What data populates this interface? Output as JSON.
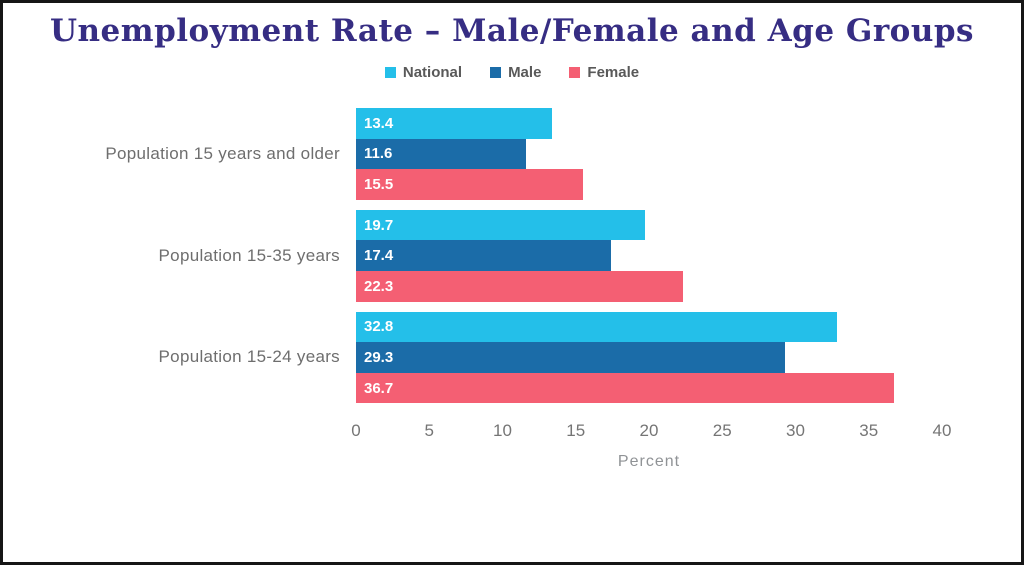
{
  "title": "Unemployment Rate – Male/Female and Age Groups",
  "colors": {
    "title": "#362D83",
    "national": "#24BFE9",
    "male": "#1B6CA8",
    "female": "#F45F73",
    "axis_text": "#757575",
    "category_text": "#6E6E6E",
    "value_label": "#FFFFFF"
  },
  "chart_data": {
    "type": "bar",
    "orientation": "horizontal",
    "title": "Unemployment Rate – Male/Female and Age Groups",
    "categories": [
      "Population 15 years and older",
      "Population 15-35 years",
      "Population 15-24 years"
    ],
    "series": [
      {
        "name": "National",
        "color": "#24BFE9",
        "values": [
          13.4,
          19.7,
          32.8
        ]
      },
      {
        "name": "Male",
        "color": "#1B6CA8",
        "values": [
          11.6,
          17.4,
          29.3
        ]
      },
      {
        "name": "Female",
        "color": "#F45F73",
        "values": [
          15.5,
          22.3,
          36.7
        ]
      }
    ],
    "xlabel": "Percent",
    "ylabel": "",
    "xlim": [
      0,
      40
    ],
    "xticks": [
      0,
      5,
      10,
      15,
      20,
      25,
      30,
      35,
      40
    ],
    "legend_position": "top",
    "grid": false,
    "value_labels": "inside-left"
  }
}
